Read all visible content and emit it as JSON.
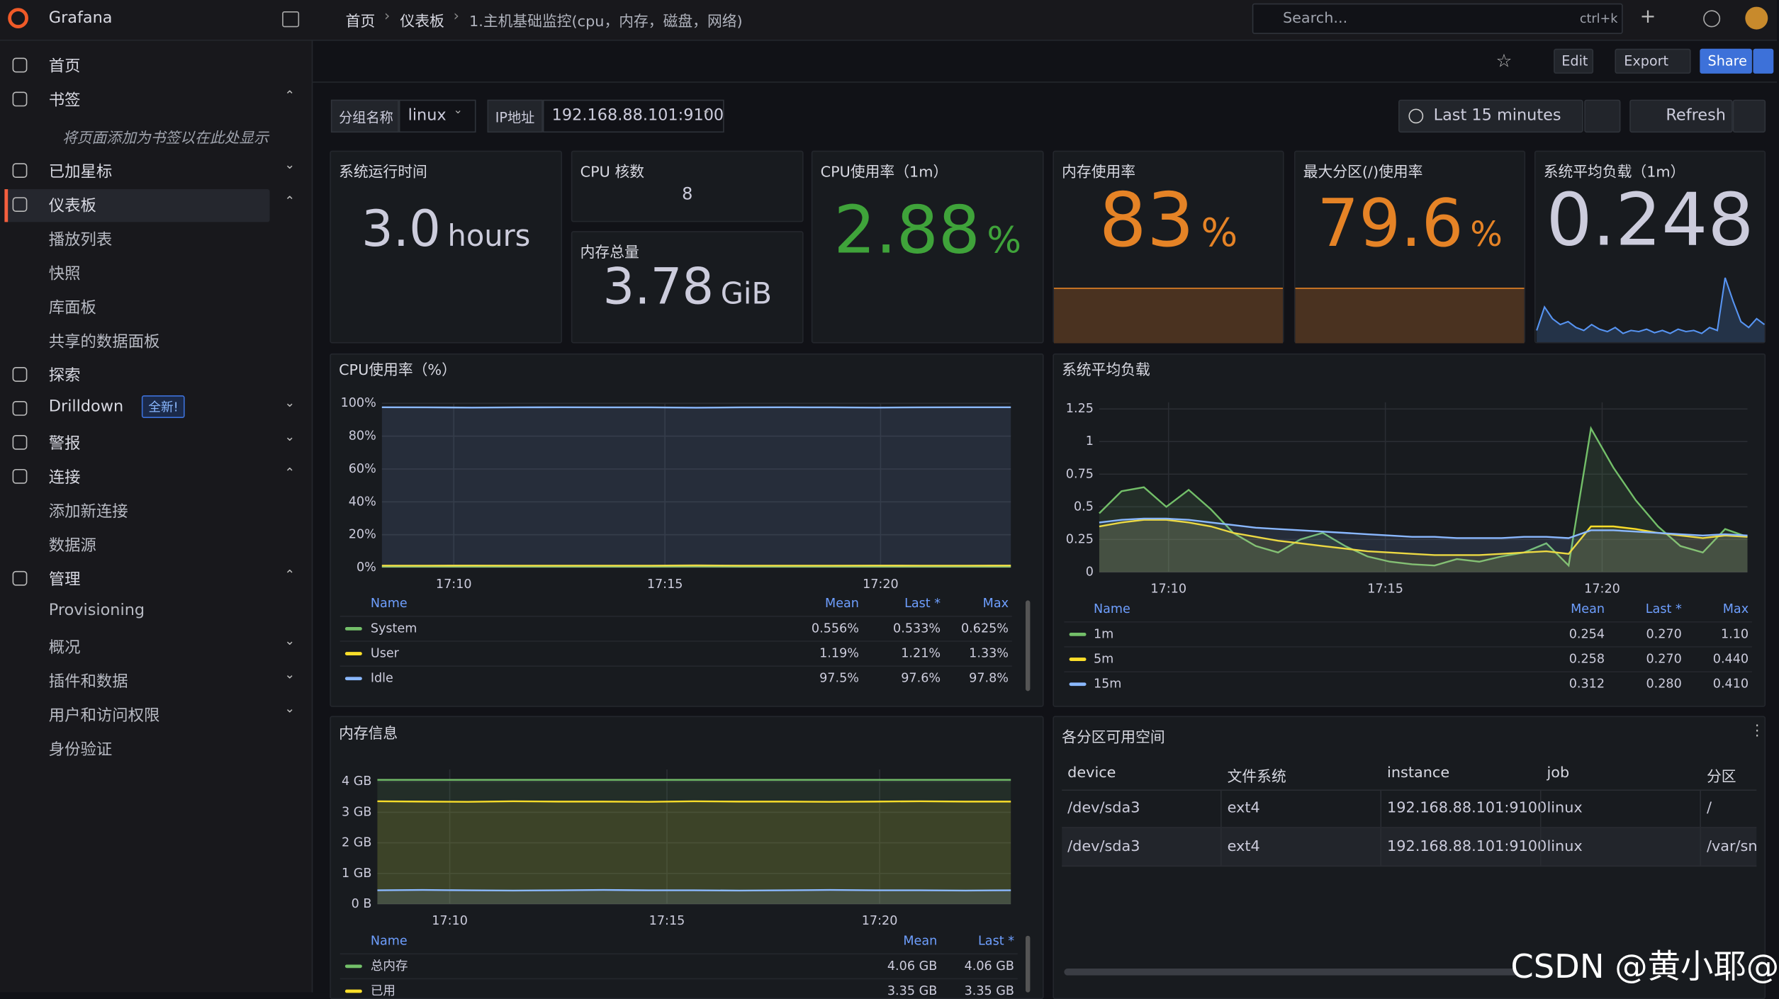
{
  "app": {
    "brand": "Grafana"
  },
  "breadcrumb": [
    "首页",
    "仪表板",
    "1.主机基础监控(cpu，内存，磁盘，网络)"
  ],
  "search": {
    "placeholder": "Search...",
    "shortcut": "ctrl+k"
  },
  "toolbar": {
    "edit": "Edit",
    "export": "Export",
    "share": "Share"
  },
  "nav": [
    {
      "label": "首页",
      "level": 0
    },
    {
      "label": "书签",
      "level": 0,
      "expanded": true
    },
    {
      "label": "将页面添加为书签以在此处显示",
      "level": 2
    },
    {
      "label": "已加星标",
      "level": 0,
      "expanded": false
    },
    {
      "label": "仪表板",
      "level": 0,
      "expanded": true,
      "active": true
    },
    {
      "label": "播放列表",
      "level": 1
    },
    {
      "label": "快照",
      "level": 1
    },
    {
      "label": "库面板",
      "level": 1
    },
    {
      "label": "共享的数据面板",
      "level": 1
    },
    {
      "label": "探索",
      "level": 0
    },
    {
      "label": "Drilldown",
      "level": 0,
      "expanded": false,
      "badge": "全新!"
    },
    {
      "label": "警报",
      "level": 0,
      "expanded": false
    },
    {
      "label": "连接",
      "level": 0,
      "expanded": true
    },
    {
      "label": "添加新连接",
      "level": 1
    },
    {
      "label": "数据源",
      "level": 1
    },
    {
      "label": "管理",
      "level": 0,
      "expanded": true
    },
    {
      "label": "Provisioning",
      "level": 1
    },
    {
      "label": "概况",
      "level": 1,
      "expanded": false
    },
    {
      "label": "插件和数据",
      "level": 1,
      "expanded": false
    },
    {
      "label": "用户和访问权限",
      "level": 1,
      "expanded": false
    },
    {
      "label": "身份验证",
      "level": 1
    }
  ],
  "variables": [
    {
      "label": "分组名称",
      "value": "linux"
    },
    {
      "label": "IP地址",
      "value": "192.168.88.101:9100"
    }
  ],
  "time_range": "Last 15 minutes",
  "refresh": "Refresh",
  "stats": [
    {
      "title": "系统运行时间",
      "value": "3.0",
      "unit": "hours",
      "color": "#ccccdc"
    },
    {
      "title": "CPU 核数",
      "value": "8",
      "color": "#ccccdc"
    },
    {
      "title": "内存总量",
      "value": "3.78",
      "unit": "GiB",
      "color": "#ccccdc"
    },
    {
      "title": "CPU使用率（1m）",
      "value": "2.88",
      "unit": "%",
      "color": "#3fa33a"
    },
    {
      "title": "内存使用率",
      "value": "83",
      "unit": "%",
      "color": "#e58326"
    },
    {
      "title": "最大分区(/)使用率",
      "value": "79.6",
      "unit": "%",
      "color": "#e58326"
    },
    {
      "title": "系统平均负载（1m）",
      "value": "0.248",
      "color": "#ccccdc",
      "sparkline": {
        "color": "#5794f2",
        "ylim": [
          0,
          1.2
        ],
        "values": [
          0.2,
          0.6,
          0.4,
          0.3,
          0.35,
          0.25,
          0.2,
          0.3,
          0.22,
          0.18,
          0.25,
          0.15,
          0.2,
          0.18,
          0.22,
          0.16,
          0.2,
          0.15,
          0.22,
          0.18,
          0.2,
          0.15,
          0.25,
          0.2,
          1.1,
          0.7,
          0.35,
          0.25,
          0.4,
          0.3
        ]
      }
    }
  ],
  "charts": [
    {
      "type": "line",
      "title": "CPU使用率（%）",
      "fill": true,
      "ylim": [
        0,
        100
      ],
      "yticks": [
        {
          "value": 0,
          "label": "0%"
        },
        {
          "value": 20,
          "label": "20%"
        },
        {
          "value": 40,
          "label": "40%"
        },
        {
          "value": 60,
          "label": "60%"
        },
        {
          "value": 80,
          "label": "80%"
        },
        {
          "value": 100,
          "label": "100%"
        }
      ],
      "xlim": [
        0,
        14
      ],
      "xticks": [
        {
          "value": 1.6,
          "label": "17:10"
        },
        {
          "value": 6.3,
          "label": "17:15"
        },
        {
          "value": 11.1,
          "label": "17:20"
        }
      ],
      "legend_columns": [
        "Name",
        "Mean",
        "Last *",
        "Max"
      ],
      "series": [
        {
          "name": "System",
          "color": "#73bf69",
          "values": [
            0.55,
            0.56,
            0.58,
            0.55,
            0.54,
            0.56,
            0.55,
            0.6,
            0.55,
            0.56,
            0.55,
            0.56,
            0.55,
            0.54,
            0.53
          ],
          "stats": [
            "0.556%",
            "0.533%",
            "0.625%"
          ]
        },
        {
          "name": "User",
          "color": "#fade2a",
          "values": [
            1.2,
            1.18,
            1.25,
            1.2,
            1.15,
            1.19,
            1.2,
            1.3,
            1.2,
            1.15,
            1.2,
            1.22,
            1.18,
            1.2,
            1.21
          ],
          "stats": [
            "1.19%",
            "1.21%",
            "1.33%"
          ]
        },
        {
          "name": "Idle",
          "color": "#8ab8ff",
          "values": [
            97.6,
            97.5,
            97.4,
            97.5,
            97.6,
            97.5,
            97.5,
            97.3,
            97.5,
            97.6,
            97.5,
            97.4,
            97.5,
            97.6,
            97.6
          ],
          "stats": [
            "97.5%",
            "97.6%",
            "97.8%"
          ]
        }
      ]
    },
    {
      "type": "line",
      "title": "系统平均负载",
      "fill": true,
      "ylim": [
        0,
        1.3
      ],
      "yticks": [
        0,
        0.25,
        0.5,
        0.75,
        1,
        1.25
      ],
      "xlim": [
        0,
        29
      ],
      "xticks": [
        {
          "value": 3.1,
          "label": "17:10"
        },
        {
          "value": 12.8,
          "label": "17:15"
        },
        {
          "value": 22.5,
          "label": "17:20"
        }
      ],
      "legend_columns": [
        "Name",
        "Mean",
        "Last *",
        "Max"
      ],
      "series": [
        {
          "name": "1m",
          "color": "#73bf69",
          "values": [
            0.45,
            0.62,
            0.65,
            0.5,
            0.63,
            0.48,
            0.3,
            0.2,
            0.15,
            0.25,
            0.3,
            0.2,
            0.12,
            0.08,
            0.06,
            0.05,
            0.1,
            0.08,
            0.12,
            0.15,
            0.22,
            0.05,
            1.1,
            0.8,
            0.55,
            0.35,
            0.2,
            0.15,
            0.33,
            0.27
          ],
          "stats": [
            "0.254",
            "0.270",
            "1.10"
          ]
        },
        {
          "name": "5m",
          "color": "#fade2a",
          "values": [
            0.35,
            0.38,
            0.4,
            0.4,
            0.38,
            0.35,
            0.3,
            0.27,
            0.24,
            0.22,
            0.2,
            0.18,
            0.16,
            0.15,
            0.14,
            0.13,
            0.13,
            0.13,
            0.14,
            0.15,
            0.16,
            0.14,
            0.35,
            0.35,
            0.33,
            0.3,
            0.28,
            0.26,
            0.28,
            0.27
          ],
          "stats": [
            "0.258",
            "0.270",
            "0.440"
          ]
        },
        {
          "name": "15m",
          "color": "#8ab8ff",
          "values": [
            0.38,
            0.4,
            0.41,
            0.41,
            0.4,
            0.38,
            0.36,
            0.34,
            0.33,
            0.32,
            0.31,
            0.3,
            0.29,
            0.28,
            0.27,
            0.27,
            0.26,
            0.26,
            0.26,
            0.27,
            0.27,
            0.26,
            0.32,
            0.32,
            0.31,
            0.3,
            0.29,
            0.28,
            0.29,
            0.28
          ],
          "stats": [
            "0.312",
            "0.280",
            "0.410"
          ]
        }
      ]
    },
    {
      "type": "line",
      "title": "内存信息",
      "fill": true,
      "ylim": [
        0,
        4.4
      ],
      "yticks": [
        {
          "value": 0,
          "label": "0 B"
        },
        {
          "value": 1,
          "label": "1 GB"
        },
        {
          "value": 2,
          "label": "2 GB"
        },
        {
          "value": 3,
          "label": "3 GB"
        },
        {
          "value": 4,
          "label": "4 GB"
        }
      ],
      "xlim": [
        0,
        14
      ],
      "xticks": [
        {
          "value": 1.6,
          "label": "17:10"
        },
        {
          "value": 6.4,
          "label": "17:15"
        },
        {
          "value": 11.1,
          "label": "17:20"
        }
      ],
      "legend_columns": [
        "Name",
        "Mean",
        "Last *"
      ],
      "series": [
        {
          "name": "总内存",
          "color": "#73bf69",
          "values": [
            4.06,
            4.06,
            4.06,
            4.06,
            4.06,
            4.06,
            4.06,
            4.06,
            4.06,
            4.06,
            4.06,
            4.06,
            4.06,
            4.06,
            4.06
          ],
          "stats": [
            "4.06 GB",
            "4.06 GB"
          ]
        },
        {
          "name": "已用",
          "color": "#fade2a",
          "values": [
            3.36,
            3.35,
            3.34,
            3.36,
            3.35,
            3.35,
            3.34,
            3.36,
            3.35,
            3.35,
            3.34,
            3.35,
            3.36,
            3.35,
            3.35
          ],
          "stats": [
            "3.35 GB",
            "3.35 GB"
          ]
        },
        {
          "color": "#8ab8ff",
          "values": [
            0.45,
            0.46,
            0.45,
            0.44,
            0.45,
            0.46,
            0.45,
            0.45,
            0.44,
            0.45,
            0.46,
            0.45,
            0.45,
            0.44,
            0.45
          ]
        }
      ]
    }
  ],
  "table": {
    "title": "各分区可用空间",
    "columns": [
      "device",
      "文件系统",
      "instance",
      "job",
      "分区"
    ],
    "rows": [
      [
        "/dev/sda3",
        "ext4",
        "192.168.88.101:9100",
        "linux",
        "/"
      ],
      [
        "/dev/sda3",
        "ext4",
        "192.168.88.101:9100",
        "linux",
        "/var/sn"
      ]
    ]
  },
  "watermark": "CSDN @黄小耶@"
}
